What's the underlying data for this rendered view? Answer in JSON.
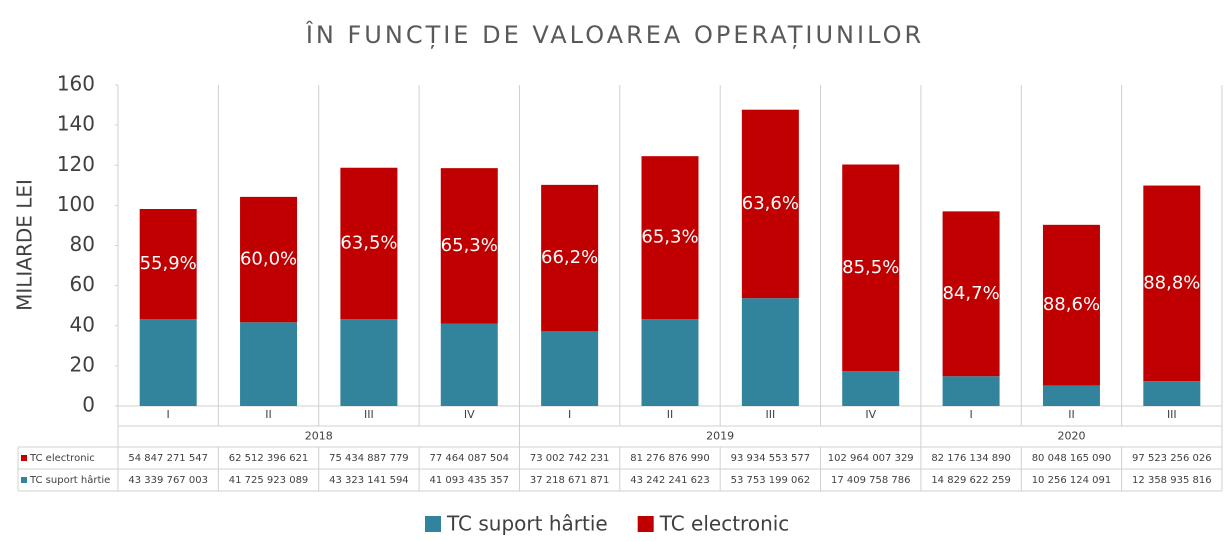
{
  "chart_data": {
    "type": "stacked_bar",
    "title": "ÎN FUNCȚIE DE VALOAREA OPERAȚIUNILOR",
    "y_label": "MILIARDE LEI",
    "categories": [
      "I",
      "II",
      "III",
      "IV",
      "I",
      "II",
      "III",
      "IV",
      "I",
      "II",
      "III"
    ],
    "groups": [
      {
        "label": "2018",
        "span": 4
      },
      {
        "label": "2019",
        "span": 4
      },
      {
        "label": "2020",
        "span": 3
      }
    ],
    "series": [
      {
        "name": "TC suport hârtie",
        "color": "#31849b",
        "values": [
          43.339767003,
          41.725923089,
          43.323141594,
          41.093435357,
          37.218671871,
          43.242241623,
          53.753199062,
          17.409758786,
          14.829622259,
          10.256124091,
          12.358935816
        ],
        "value_labels": [
          "43 339 767 003",
          "41 725 923 089",
          "43 323 141 594",
          "41 093 435 357",
          "37 218 671 871",
          "43 242 241 623",
          "53 753 199 062",
          "17 409 758 786",
          "14 829 622 259",
          "10 256 124 091",
          "12 358 935 816"
        ]
      },
      {
        "name": "TC electronic",
        "color": "#c00000",
        "values": [
          54.847271547,
          62.512396621,
          75.434887779,
          77.464087504,
          73.002742231,
          81.27687699,
          93.934553577,
          102.964007329,
          82.17613489,
          80.04816509,
          97.523256026
        ],
        "value_labels": [
          "54 847 271 547",
          "62 512 396 621",
          "75 434 887 779",
          "77 464 087 504",
          "73 002 742 231",
          "81 276 876 990",
          "93 934 553 577",
          "102 964 007 329",
          "82 176 134 890",
          "80 048 165 090",
          "97 523 256 026"
        ],
        "share_labels": [
          "55,9%",
          "60,0%",
          "63,5%",
          "65,3%",
          "66,2%",
          "65,3%",
          "63,6%",
          "85,5%",
          "84,7%",
          "88,6%",
          "88,8%"
        ]
      }
    ],
    "ylim": [
      0,
      160
    ],
    "yticks": [
      0,
      20,
      40,
      60,
      80,
      100,
      120,
      140,
      160
    ],
    "legend": "bottom"
  }
}
